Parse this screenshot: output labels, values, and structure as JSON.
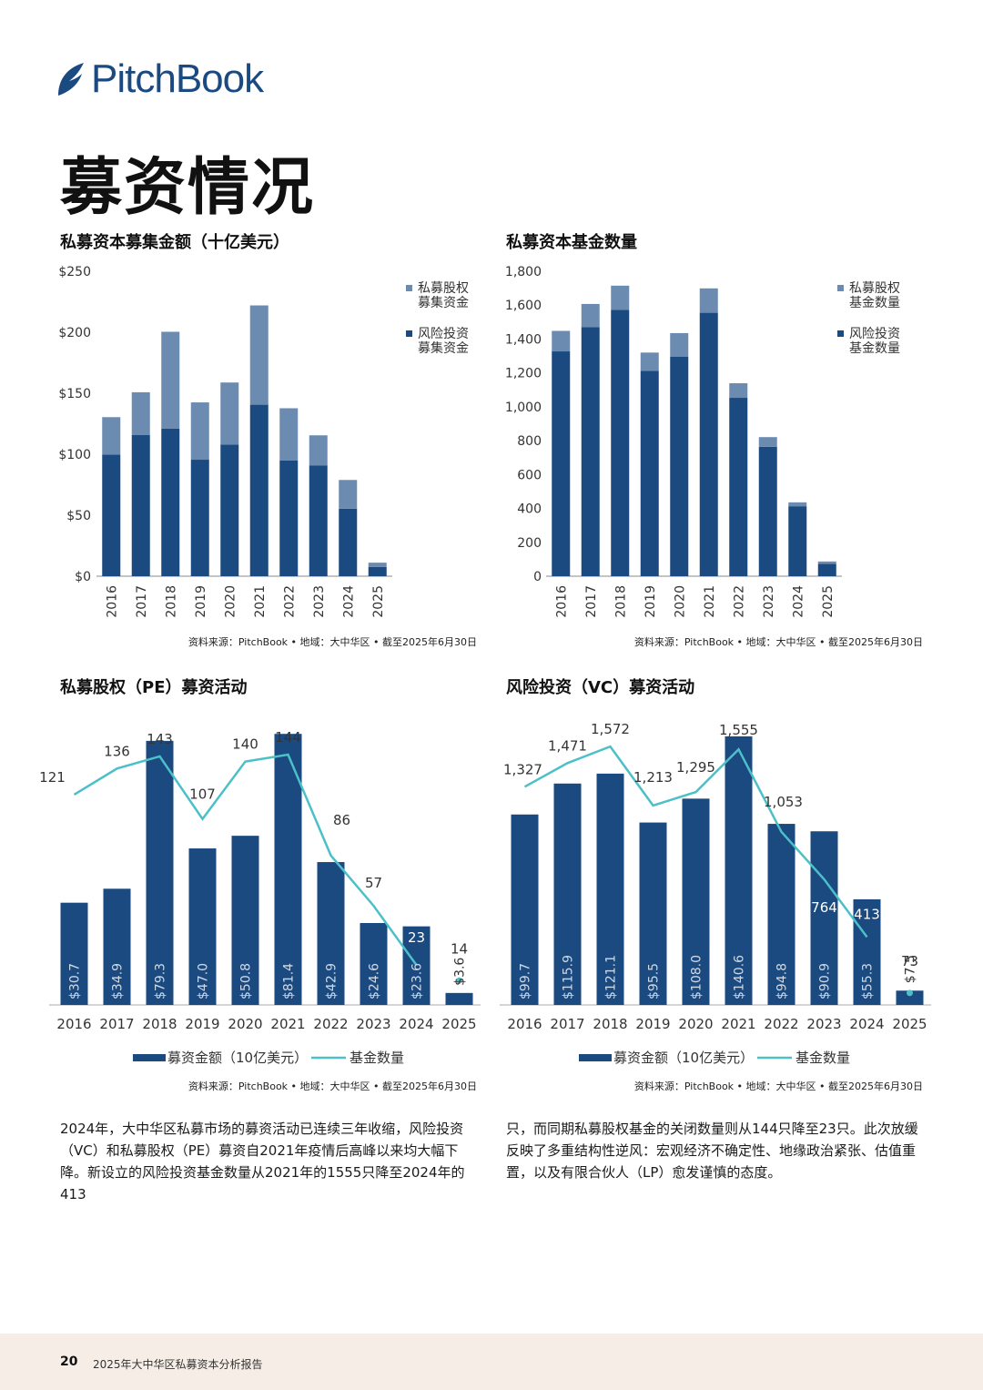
{
  "brand": {
    "name": "PitchBook",
    "color": "#1b4a80"
  },
  "page_title": "募资情况",
  "colors": {
    "dark": "#1b4a80",
    "light": "#6b8cb0",
    "line": "#4cc0c8"
  },
  "source_text": "资料来源：PitchBook • 地域：大中华区 • 截至2025年6月30日",
  "body": {
    "left": "2024年，大中华区私募市场的募资活动已连续三年收缩，风险投资（VC）和私募股权（PE）募资自2021年疫情后高峰以来均大幅下降。新设立的风险投资基金数量从2021年的1555只降至2024年的413",
    "right": "只，而同期私募股权基金的关闭数量则从144只降至23只。此次放缓反映了多重结构性逆风：宏观经济不确定性、地缘政治紧张、估值重置，以及有限合伙人（LP）愈发谨慎的态度。"
  },
  "footer": {
    "page_number": "20",
    "report_title": "2025年大中华区私募资本分析报告"
  },
  "chart_data": [
    {
      "type": "bar",
      "stacked": true,
      "title": "私募资本募集金额（十亿美元）",
      "categories": [
        "2016",
        "2017",
        "2018",
        "2019",
        "2020",
        "2021",
        "2022",
        "2023",
        "2024",
        "2025"
      ],
      "series": [
        {
          "name": "风险投资募集资金",
          "values": [
            99.7,
            115.9,
            121.1,
            95.5,
            108.0,
            140.6,
            94.8,
            90.9,
            55.3,
            7.5
          ]
        },
        {
          "name": "私募股权募集资金",
          "values": [
            30.7,
            34.9,
            79.3,
            47.0,
            50.8,
            81.4,
            42.9,
            24.6,
            23.6,
            3.6
          ]
        }
      ],
      "ylim": [
        0,
        250
      ],
      "yticks": [
        "$0",
        "$50",
        "$100",
        "$150",
        "$200",
        "$250"
      ],
      "legend_position": "top-right"
    },
    {
      "type": "bar",
      "stacked": true,
      "title": "私募资本基金数量",
      "categories": [
        "2016",
        "2017",
        "2018",
        "2019",
        "2020",
        "2021",
        "2022",
        "2023",
        "2024",
        "2025"
      ],
      "series": [
        {
          "name": "风险投资基金数量",
          "values": [
            1327,
            1471,
            1572,
            1213,
            1295,
            1555,
            1053,
            764,
            413,
            73
          ]
        },
        {
          "name": "私募股权基金数量",
          "values": [
            121,
            136,
            143,
            107,
            140,
            144,
            86,
            57,
            23,
            14
          ]
        }
      ],
      "ylim": [
        0,
        1800
      ],
      "yticks": [
        "0",
        "200",
        "400",
        "600",
        "800",
        "1,000",
        "1,200",
        "1,400",
        "1,600",
        "1,800"
      ],
      "legend_position": "top-right"
    },
    {
      "type": "bar",
      "title": "私募股权（PE）募资活动",
      "categories": [
        "2016",
        "2017",
        "2018",
        "2019",
        "2020",
        "2021",
        "2022",
        "2023",
        "2024",
        "2025"
      ],
      "bar_series": {
        "name": "募资金额（10亿美元）",
        "values": [
          30.7,
          34.9,
          79.3,
          47.0,
          50.8,
          81.4,
          42.9,
          24.6,
          23.6,
          3.6
        ],
        "labels": [
          "$30.7",
          "$34.9",
          "$79.3",
          "$47.0",
          "$50.8",
          "$81.4",
          "$42.9",
          "$24.6",
          "$23.6",
          "$3.6"
        ]
      },
      "line_series": {
        "name": "基金数量",
        "values": [
          121,
          136,
          143,
          107,
          140,
          144,
          86,
          57,
          23,
          14
        ],
        "labels": [
          "121",
          "136",
          "143",
          "107",
          "140",
          "144",
          "86",
          "57",
          "23",
          "14"
        ]
      },
      "bar_ylim": [
        0,
        82
      ],
      "line_ylim": [
        0,
        155
      ],
      "legend_position": "bottom"
    },
    {
      "type": "bar",
      "title": "风险投资（VC）募资活动",
      "categories": [
        "2016",
        "2017",
        "2018",
        "2019",
        "2020",
        "2021",
        "2022",
        "2023",
        "2024",
        "2025"
      ],
      "bar_series": {
        "name": "募资金额（10亿美元）",
        "values": [
          99.7,
          115.9,
          121.1,
          95.5,
          108.0,
          140.6,
          94.8,
          90.9,
          55.3,
          7.5
        ],
        "labels": [
          "$99.7",
          "$115.9",
          "$121.1",
          "$95.5",
          "$108.0",
          "$140.6",
          "$94.8",
          "$90.9",
          "$55.3",
          "$7.5"
        ]
      },
      "line_series": {
        "name": "基金数量",
        "values": [
          1327,
          1471,
          1572,
          1213,
          1295,
          1555,
          1053,
          764,
          413,
          73
        ],
        "labels": [
          "1,327",
          "1,471",
          "1,572",
          "1,213",
          "1,295",
          "1,555",
          "1,053",
          "764",
          "413",
          "73"
        ]
      },
      "bar_ylim": [
        0,
        142
      ],
      "line_ylim": [
        0,
        1650
      ],
      "legend_position": "bottom"
    }
  ]
}
